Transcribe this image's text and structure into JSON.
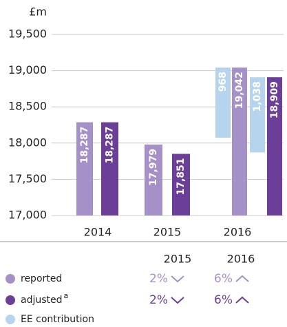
{
  "chart_data": {
    "type": "bar",
    "y_label": "£m",
    "categories": [
      "2014",
      "2015",
      "2016"
    ],
    "ylim": [
      17000,
      19500
    ],
    "yticks": [
      {
        "value": 17000,
        "label": "17,000"
      },
      {
        "value": 17500,
        "label": "17,500"
      },
      {
        "value": 18000,
        "label": "18,000"
      },
      {
        "value": 18500,
        "label": "18,500"
      },
      {
        "value": 19000,
        "label": "19,000"
      },
      {
        "value": 19500,
        "label": "19,500"
      }
    ],
    "grid": true,
    "series": [
      {
        "name": "reported",
        "color": "#a690c8",
        "values": [
          18287,
          17979,
          19042
        ],
        "value_labels": [
          "18,287",
          "17,979",
          "19,042"
        ]
      },
      {
        "name": "adjusted",
        "footnote": "a",
        "color": "#6b3f98",
        "values": [
          18287,
          17851,
          18909
        ],
        "value_labels": [
          "18,287",
          "17,851",
          "18,909"
        ]
      }
    ],
    "ee_contribution": {
      "name": "EE contribution",
      "color": "#b7d4ee",
      "values": [
        968,
        1038
      ],
      "value_labels": [
        "968",
        "1,038"
      ]
    },
    "growth_table": {
      "columns": [
        "2015",
        "2016"
      ],
      "rows": [
        {
          "values": [
            2,
            6
          ],
          "value_labels": [
            "2%",
            "6%"
          ],
          "directions": [
            "down",
            "up"
          ]
        },
        {
          "values": [
            2,
            6
          ],
          "value_labels": [
            "2%",
            "6%"
          ],
          "directions": [
            "down",
            "up"
          ]
        }
      ]
    }
  }
}
